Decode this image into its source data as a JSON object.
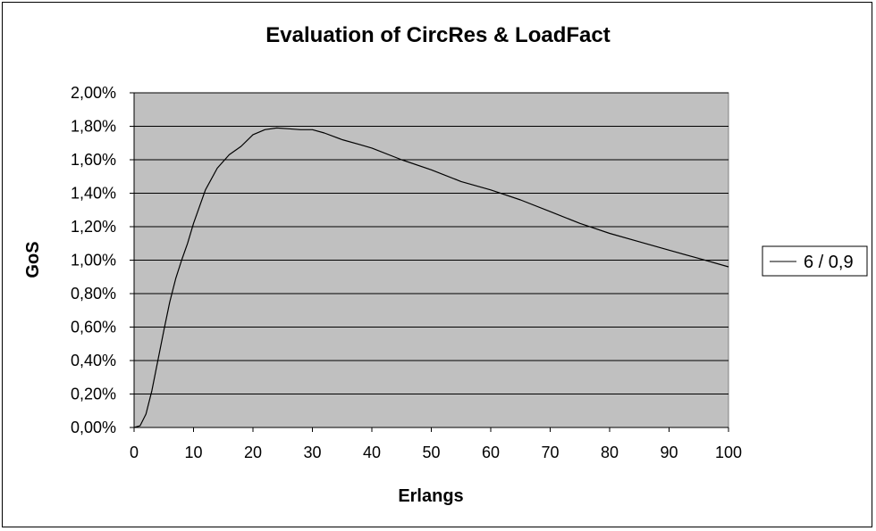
{
  "chart_data": {
    "type": "line",
    "title": "Evaluation of CircRes & LoadFact",
    "xlabel": "Erlangs",
    "ylabel": "GoS",
    "xlim": [
      0,
      100
    ],
    "ylim": [
      0,
      2.0
    ],
    "x_ticks": [
      0,
      10,
      20,
      30,
      40,
      50,
      60,
      70,
      80,
      90,
      100
    ],
    "x_tick_labels": [
      "0",
      "10",
      "20",
      "30",
      "40",
      "50",
      "60",
      "70",
      "80",
      "90",
      "100"
    ],
    "y_ticks": [
      0,
      0.2,
      0.4,
      0.6,
      0.8,
      1.0,
      1.2,
      1.4,
      1.6,
      1.8,
      2.0
    ],
    "y_tick_labels": [
      "0,00%",
      "0,20%",
      "0,40%",
      "0,60%",
      "0,80%",
      "1,00%",
      "1,20%",
      "1,40%",
      "1,60%",
      "1,80%",
      "2,00%"
    ],
    "y_unit": "%",
    "grid": "horizontal",
    "plot_background": "#c0c0c0",
    "legend_position": "right",
    "series": [
      {
        "name": "6 / 0,9",
        "color": "#000000",
        "x": [
          0,
          1,
          2,
          3,
          4,
          5,
          6,
          7,
          8,
          9,
          10,
          12,
          14,
          16,
          18,
          20,
          22,
          24,
          26,
          28,
          30,
          32,
          35,
          38,
          40,
          45,
          50,
          55,
          60,
          65,
          70,
          75,
          80,
          85,
          90,
          95,
          100
        ],
        "y": [
          0.0,
          0.01,
          0.08,
          0.22,
          0.4,
          0.58,
          0.75,
          0.89,
          1.0,
          1.1,
          1.22,
          1.42,
          1.55,
          1.63,
          1.68,
          1.75,
          1.78,
          1.79,
          1.785,
          1.78,
          1.78,
          1.76,
          1.72,
          1.69,
          1.67,
          1.6,
          1.54,
          1.47,
          1.42,
          1.36,
          1.29,
          1.22,
          1.16,
          1.11,
          1.06,
          1.01,
          0.96
        ]
      }
    ]
  }
}
